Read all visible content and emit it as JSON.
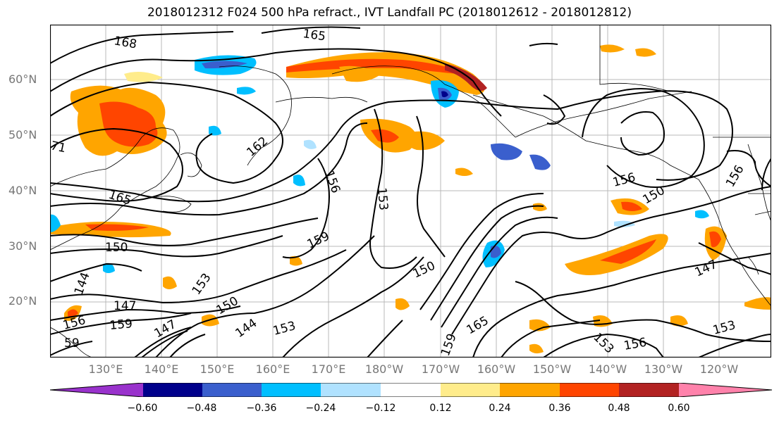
{
  "title": "2018012312 F024 500 hPa refract., IVT Landfall PC (2018012612 - 2018012812)",
  "lat_labels": [
    "60°N",
    "50°N",
    "40°N",
    "30°N",
    "20°N"
  ],
  "lon_labels": [
    "130°E",
    "140°E",
    "150°E",
    "160°E",
    "170°E",
    "180°W",
    "170°W",
    "160°W",
    "150°W",
    "140°W",
    "130°W",
    "120°W"
  ],
  "contour_labels": [
    "168",
    "165",
    "71",
    "162",
    "156",
    "153",
    "165",
    "150",
    "159",
    "150",
    "144",
    "153",
    "147",
    "150",
    "156",
    "159",
    "147",
    "144",
    "153",
    "59",
    "159",
    "165",
    "156",
    "150",
    "156",
    "147",
    "153",
    "156",
    "153"
  ],
  "colorbar": {
    "ticks": [
      "−0.60",
      "−0.48",
      "−0.36",
      "−0.24",
      "−0.12",
      "0.12",
      "0.24",
      "0.36",
      "0.48",
      "0.60"
    ],
    "colors": [
      "#9932cc",
      "#00008b",
      "#3a5fcd",
      "#00bfff",
      "#b0e2ff",
      "#ffffff",
      "#ffec8b",
      "#ffa500",
      "#ff4500",
      "#b22222",
      "#ff82ab"
    ]
  }
}
